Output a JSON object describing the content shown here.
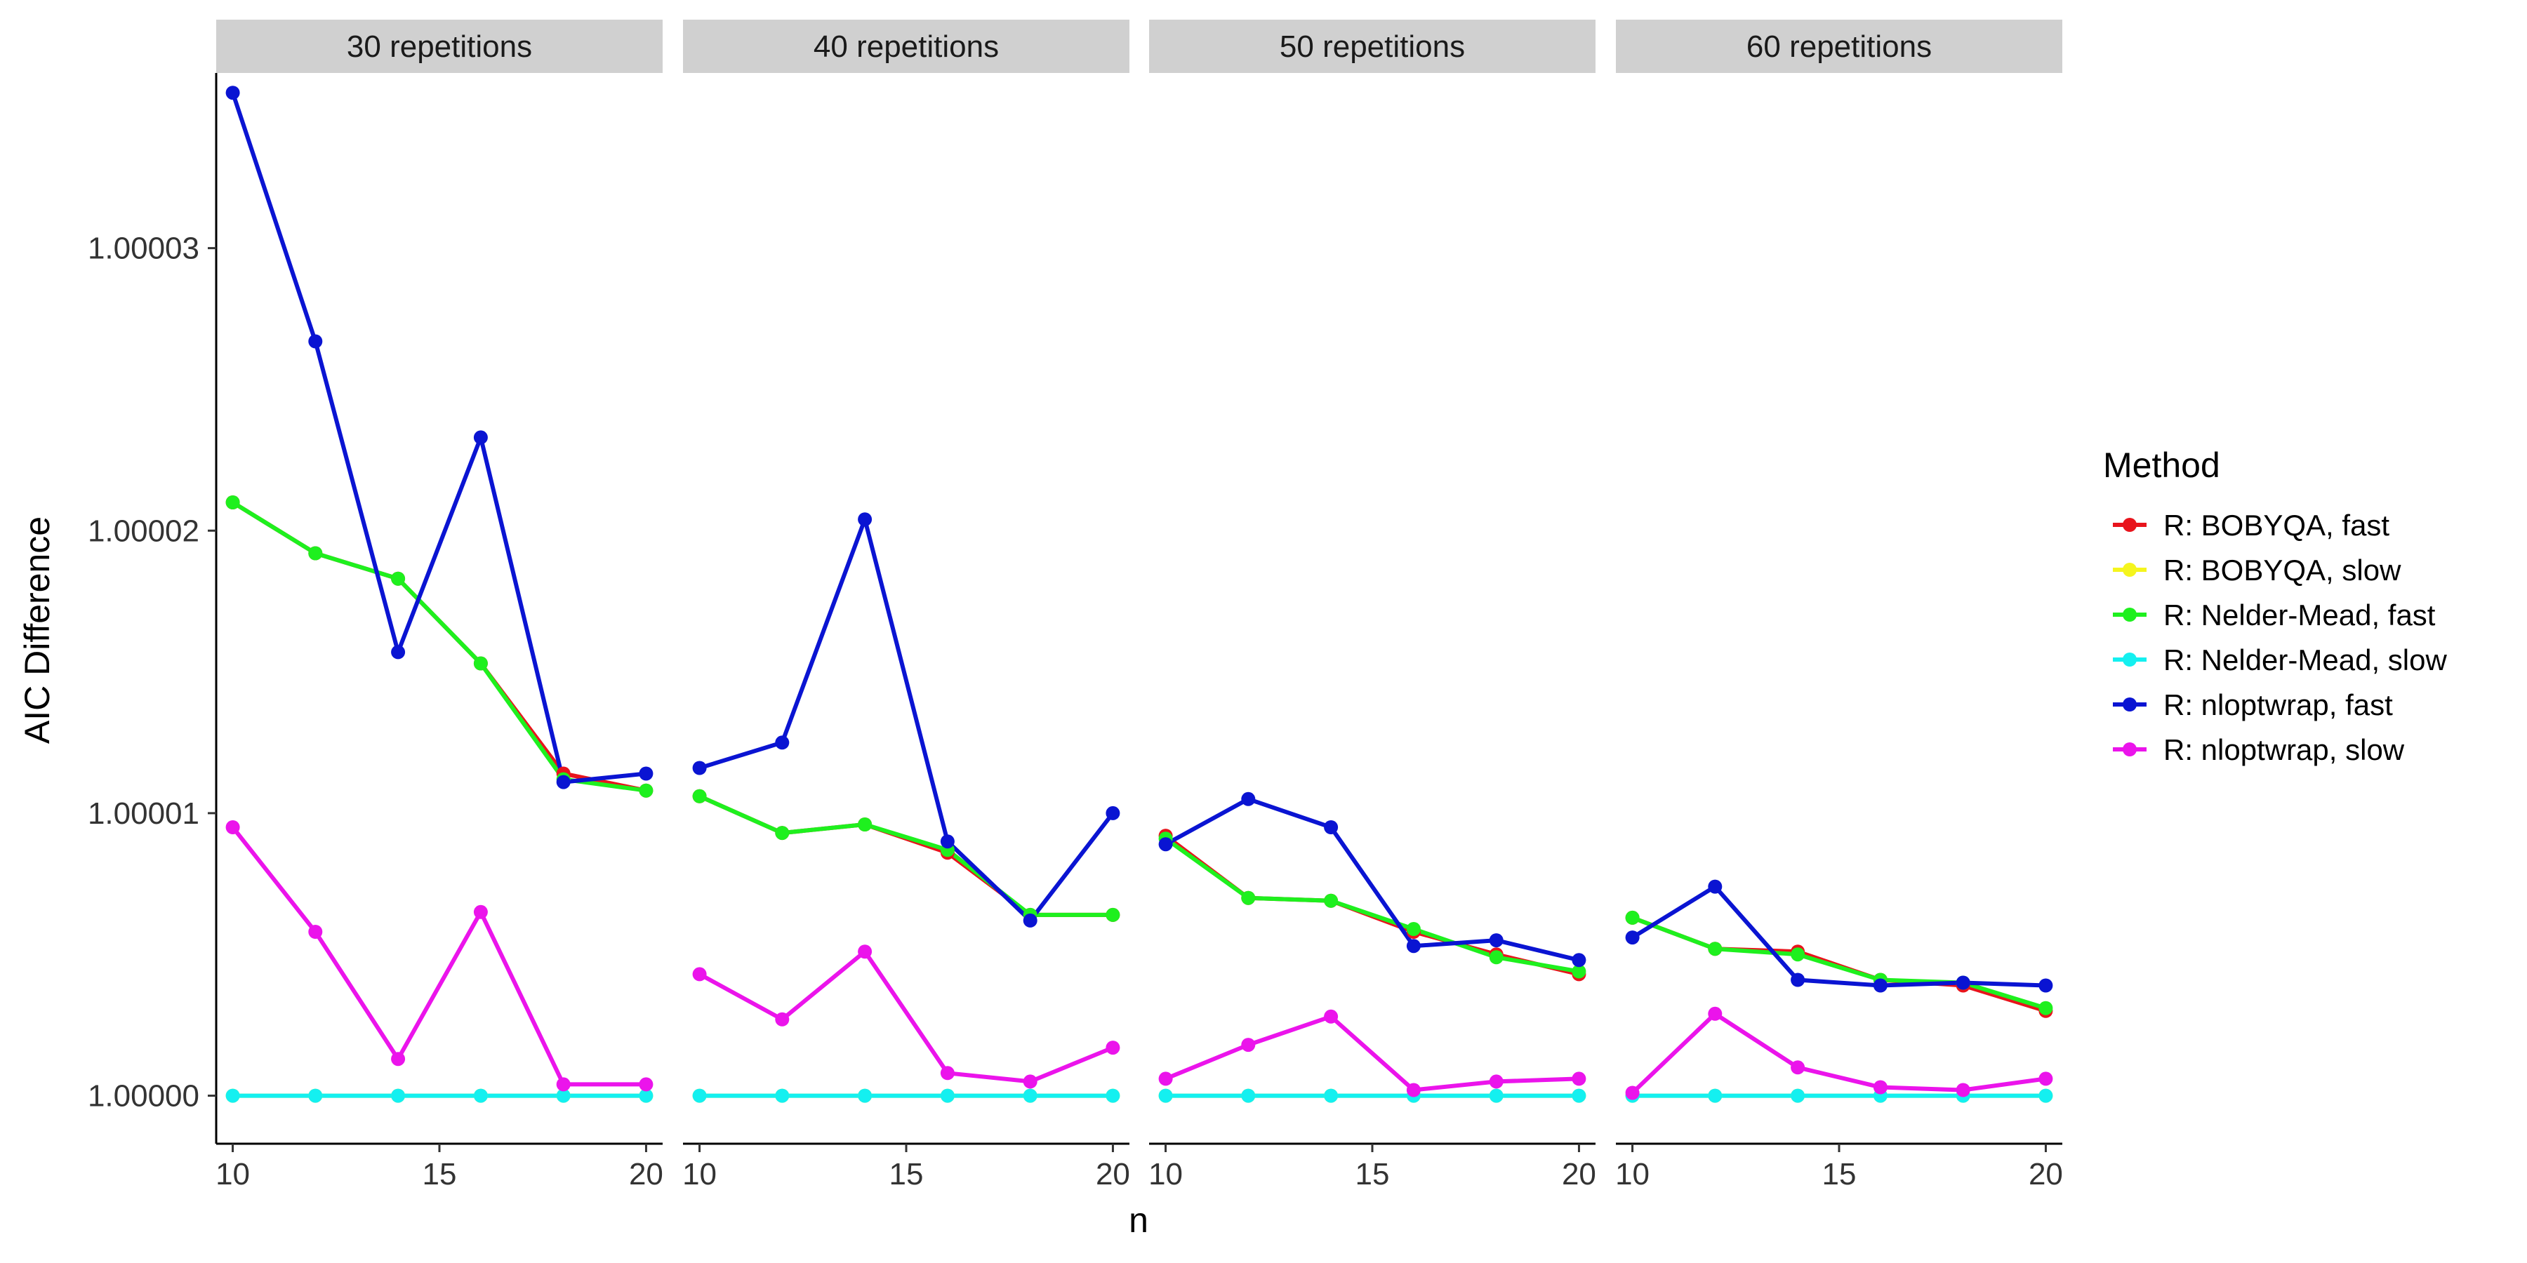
{
  "chart_data": {
    "type": "line",
    "facet_variable": "repetitions",
    "panels": [
      {
        "label": "30 repetitions",
        "series": [
          {
            "name": "R: BOBYQA, fast",
            "values": [
              1.000021,
              1.0000192,
              1.0000183,
              1.0000153,
              1.0000114,
              1.0000108
            ]
          },
          {
            "name": "R: BOBYQA, slow",
            "values": [
              1.0,
              1.0,
              1.0,
              1.0,
              1.0,
              1.0
            ]
          },
          {
            "name": "R: Nelder-Mead, fast",
            "values": [
              1.000021,
              1.0000192,
              1.0000183,
              1.0000153,
              1.0000112,
              1.0000108
            ]
          },
          {
            "name": "R: Nelder-Mead, slow",
            "values": [
              1.0,
              1.0,
              1.0,
              1.0,
              1.0,
              1.0
            ]
          },
          {
            "name": "R: nloptwrap, fast",
            "values": [
              1.0000355,
              1.0000267,
              1.0000157,
              1.0000233,
              1.0000111,
              1.0000114
            ]
          },
          {
            "name": "R: nloptwrap, slow",
            "values": [
              1.0000095,
              1.0000058,
              1.0000013,
              1.0000065,
              1.0000004,
              1.0000004
            ]
          }
        ]
      },
      {
        "label": "40 repetitions",
        "series": [
          {
            "name": "R: BOBYQA, fast",
            "values": [
              1.0000106,
              1.0000093,
              1.0000096,
              1.0000086,
              1.0000064,
              1.0000064
            ]
          },
          {
            "name": "R: BOBYQA, slow",
            "values": [
              1.0,
              1.0,
              1.0,
              1.0,
              1.0,
              1.0
            ]
          },
          {
            "name": "R: Nelder-Mead, fast",
            "values": [
              1.0000106,
              1.0000093,
              1.0000096,
              1.0000087,
              1.0000064,
              1.0000064
            ]
          },
          {
            "name": "R: Nelder-Mead, slow",
            "values": [
              1.0,
              1.0,
              1.0,
              1.0,
              1.0,
              1.0
            ]
          },
          {
            "name": "R: nloptwrap, fast",
            "values": [
              1.0000116,
              1.0000125,
              1.0000204,
              1.000009,
              1.0000062,
              1.00001
            ]
          },
          {
            "name": "R: nloptwrap, slow",
            "values": [
              1.0000043,
              1.0000027,
              1.0000051,
              1.0000008,
              1.0000005,
              1.0000017
            ]
          }
        ]
      },
      {
        "label": "50 repetitions",
        "series": [
          {
            "name": "R: BOBYQA, fast",
            "values": [
              1.0000092,
              1.000007,
              1.0000069,
              1.0000058,
              1.000005,
              1.0000043
            ]
          },
          {
            "name": "R: BOBYQA, slow",
            "values": [
              1.0,
              1.0,
              1.0,
              1.0,
              1.0,
              1.0
            ]
          },
          {
            "name": "R: Nelder-Mead, fast",
            "values": [
              1.0000091,
              1.000007,
              1.0000069,
              1.0000059,
              1.0000049,
              1.0000044
            ]
          },
          {
            "name": "R: Nelder-Mead, slow",
            "values": [
              1.0,
              1.0,
              1.0,
              1.0,
              1.0,
              1.0
            ]
          },
          {
            "name": "R: nloptwrap, fast",
            "values": [
              1.0000089,
              1.0000105,
              1.0000095,
              1.0000053,
              1.0000055,
              1.0000048
            ]
          },
          {
            "name": "R: nloptwrap, slow",
            "values": [
              1.0000006,
              1.0000018,
              1.0000028,
              1.0000002,
              1.0000005,
              1.0000006
            ]
          }
        ]
      },
      {
        "label": "60 repetitions",
        "series": [
          {
            "name": "R: BOBYQA, fast",
            "values": [
              1.0000063,
              1.0000052,
              1.0000051,
              1.0000041,
              1.0000039,
              1.000003
            ]
          },
          {
            "name": "R: BOBYQA, slow",
            "values": [
              1.0,
              1.0,
              1.0,
              1.0,
              1.0,
              1.0
            ]
          },
          {
            "name": "R: Nelder-Mead, fast",
            "values": [
              1.0000063,
              1.0000052,
              1.000005,
              1.0000041,
              1.000004,
              1.0000031
            ]
          },
          {
            "name": "R: Nelder-Mead, slow",
            "values": [
              1.0,
              1.0,
              1.0,
              1.0,
              1.0,
              1.0
            ]
          },
          {
            "name": "R: nloptwrap, fast",
            "values": [
              1.0000056,
              1.0000074,
              1.0000041,
              1.0000039,
              1.000004,
              1.0000039
            ]
          },
          {
            "name": "R: nloptwrap, slow",
            "values": [
              1.0000001,
              1.0000029,
              1.000001,
              1.0000003,
              1.0000002,
              1.0000006
            ]
          }
        ]
      }
    ],
    "x": [
      10,
      12,
      14,
      16,
      18,
      20
    ],
    "x_ticks": [
      10,
      15,
      20
    ],
    "x_tick_labels": [
      "10",
      "15",
      "20"
    ],
    "xlim": [
      9.6,
      20.4
    ],
    "y_ticks": [
      1.0,
      1.00001,
      1.00002,
      1.00003
    ],
    "y_tick_labels": [
      "1.00000",
      "1.00001",
      "1.00002",
      "1.00003"
    ],
    "ylim": [
      0.9999983,
      1.0000362
    ],
    "xlabel": "n",
    "ylabel": "AIC Difference",
    "legend_title": "Method",
    "legend_position": "right",
    "legend_entries": [
      "R: BOBYQA, fast",
      "R: BOBYQA, slow",
      "R: Nelder-Mead, fast",
      "R: Nelder-Mead, slow",
      "R: nloptwrap, fast",
      "R: nloptwrap, slow"
    ],
    "grid": false,
    "colors": {
      "R: BOBYQA, fast": "#e8141c",
      "R: BOBYQA, slow": "#f5f51e",
      "R: Nelder-Mead, fast": "#1ef01e",
      "R: Nelder-Mead, slow": "#14f0f0",
      "R: nloptwrap, fast": "#0a14d2",
      "R: nloptwrap, slow": "#eb14eb"
    },
    "strip_fill": "#d0d0d0"
  }
}
